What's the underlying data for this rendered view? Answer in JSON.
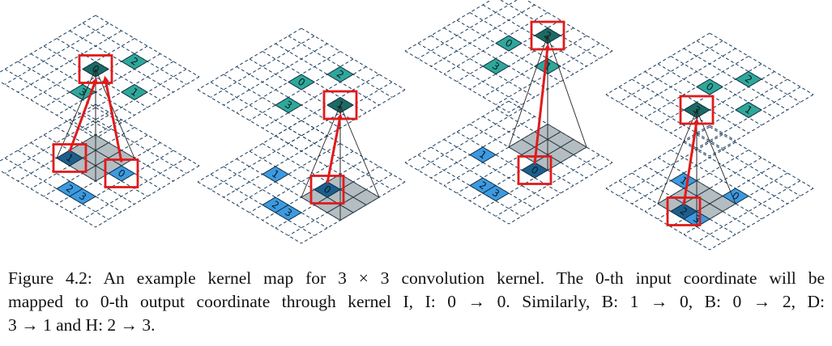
{
  "figure": {
    "panels": [
      {
        "id": "p1",
        "input_cells": [
          {
            "u": 2,
            "v": 0,
            "label": "0"
          },
          {
            "u": -1,
            "v": 1,
            "label": "1"
          },
          {
            "u": 1,
            "v": 3,
            "label": "2"
          },
          {
            "u": 2,
            "v": 3,
            "label": "3"
          }
        ],
        "output_cells": [
          {
            "u": 0,
            "v": 0,
            "label": "0"
          },
          {
            "u": 3,
            "v": 0,
            "label": "1"
          },
          {
            "u": 1,
            "v": -2,
            "label": "2"
          },
          {
            "u": 1,
            "v": 2,
            "label": "3"
          }
        ]
      },
      {
        "id": "p2",
        "input_cells": [
          {
            "u": 2,
            "v": 0,
            "label": "0"
          },
          {
            "u": -1,
            "v": 1,
            "label": "1"
          },
          {
            "u": 1,
            "v": 3,
            "label": "2"
          },
          {
            "u": 2,
            "v": 3,
            "label": "3"
          }
        ],
        "output_cells": [
          {
            "u": 0,
            "v": 0,
            "label": "0"
          },
          {
            "u": 3,
            "v": 0,
            "label": "1"
          },
          {
            "u": 1,
            "v": -2,
            "label": "2"
          },
          {
            "u": 1,
            "v": 2,
            "label": "3"
          }
        ]
      },
      {
        "id": "p3",
        "input_cells": [
          {
            "u": 2,
            "v": 0,
            "label": "0"
          },
          {
            "u": -1,
            "v": 1,
            "label": "1"
          },
          {
            "u": 1,
            "v": 3,
            "label": "2"
          },
          {
            "u": 2,
            "v": 3,
            "label": "3"
          }
        ],
        "output_cells": [
          {
            "u": 0,
            "v": 0,
            "label": "0"
          },
          {
            "u": 3,
            "v": 0,
            "label": "1"
          },
          {
            "u": 1,
            "v": -2,
            "label": "2"
          },
          {
            "u": 1,
            "v": 2,
            "label": "3"
          }
        ]
      },
      {
        "id": "p4",
        "input_cells": [
          {
            "u": 2,
            "v": 0,
            "label": "0"
          },
          {
            "u": -1,
            "v": 1,
            "label": "1"
          },
          {
            "u": 1,
            "v": 3,
            "label": "2"
          },
          {
            "u": 2,
            "v": 3,
            "label": "3"
          }
        ],
        "output_cells": [
          {
            "u": 0,
            "v": 0,
            "label": "0"
          },
          {
            "u": 3,
            "v": 0,
            "label": "1"
          },
          {
            "u": 1,
            "v": -2,
            "label": "2"
          },
          {
            "u": 1,
            "v": 2,
            "label": "3"
          }
        ]
      }
    ],
    "colors": {
      "input_cell": "#3d9ae0",
      "output_cell": "#2fa899",
      "highlight_input": "#1d5f8c",
      "highlight_output": "#1c6b63",
      "kernel_fill": "#9aa7ae",
      "kernel_highlight_fill": "#b3bec4",
      "grid": "#1a3a5a",
      "highlight_box": "#e01b1b"
    }
  },
  "caption": {
    "line1": "Figure 4.2: An example kernel map for 3 × 3 convolution kernel. The 0-th input coordinate will be",
    "line2": "mapped to 0-th output coordinate through kernel I, I: 0 → 0. Similarly, B: 1 → 0, B: 0 → 2, D:",
    "line3": "3 → 1 and H: 2 → 3."
  }
}
